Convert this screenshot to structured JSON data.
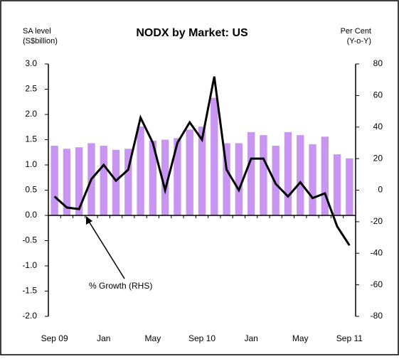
{
  "chart_data": {
    "type": "bar-line",
    "title": "NODX by Market: US",
    "y_axis_title": [
      "SA level",
      "(S$billion)"
    ],
    "y2_axis_title": [
      "Per Cent",
      "(Y-o-Y)"
    ],
    "annotation": "% Growth  (RHS)",
    "categories": [
      "Sep 09",
      null,
      null,
      null,
      "Jan",
      null,
      null,
      null,
      "May",
      null,
      null,
      null,
      "Sep 10",
      null,
      null,
      null,
      "Jan",
      null,
      null,
      null,
      "May",
      null,
      null,
      null,
      "Sep 11"
    ],
    "series": [
      {
        "type": "bar",
        "color": "#c896f0",
        "values": [
          1.38,
          1.32,
          1.35,
          1.43,
          1.38,
          1.3,
          1.32,
          1.76,
          1.48,
          1.5,
          1.53,
          1.7,
          1.76,
          2.33,
          1.43,
          1.43,
          1.65,
          1.59,
          1.38,
          1.65,
          1.59,
          1.41,
          1.56,
          1.21,
          1.13
        ]
      },
      {
        "type": "line",
        "axis": "y2",
        "color": "#000000",
        "values": [
          -4,
          -11,
          -12,
          7,
          16,
          6,
          13,
          46,
          30,
          0,
          30,
          43,
          32,
          72,
          13,
          0,
          20,
          20,
          4,
          -4,
          5,
          -5,
          -2,
          -23,
          -35
        ]
      }
    ],
    "ylim": [
      -2,
      3
    ],
    "yticks": [
      {
        "value": -2,
        "label": "-2.0"
      },
      -1.5,
      {
        "value": -1,
        "label": "-1.0"
      },
      -0.5,
      {
        "value": 0,
        "label": "0.0"
      },
      0.5,
      {
        "value": 1,
        "label": "1.0"
      },
      1.5,
      {
        "value": 2,
        "label": "2.0"
      },
      2.5,
      {
        "value": 3,
        "label": "3.0"
      }
    ],
    "y2lim": [
      -80,
      80
    ],
    "y2ticks": [
      -80,
      -60,
      -40,
      -20,
      0,
      20,
      40,
      60,
      80
    ]
  }
}
